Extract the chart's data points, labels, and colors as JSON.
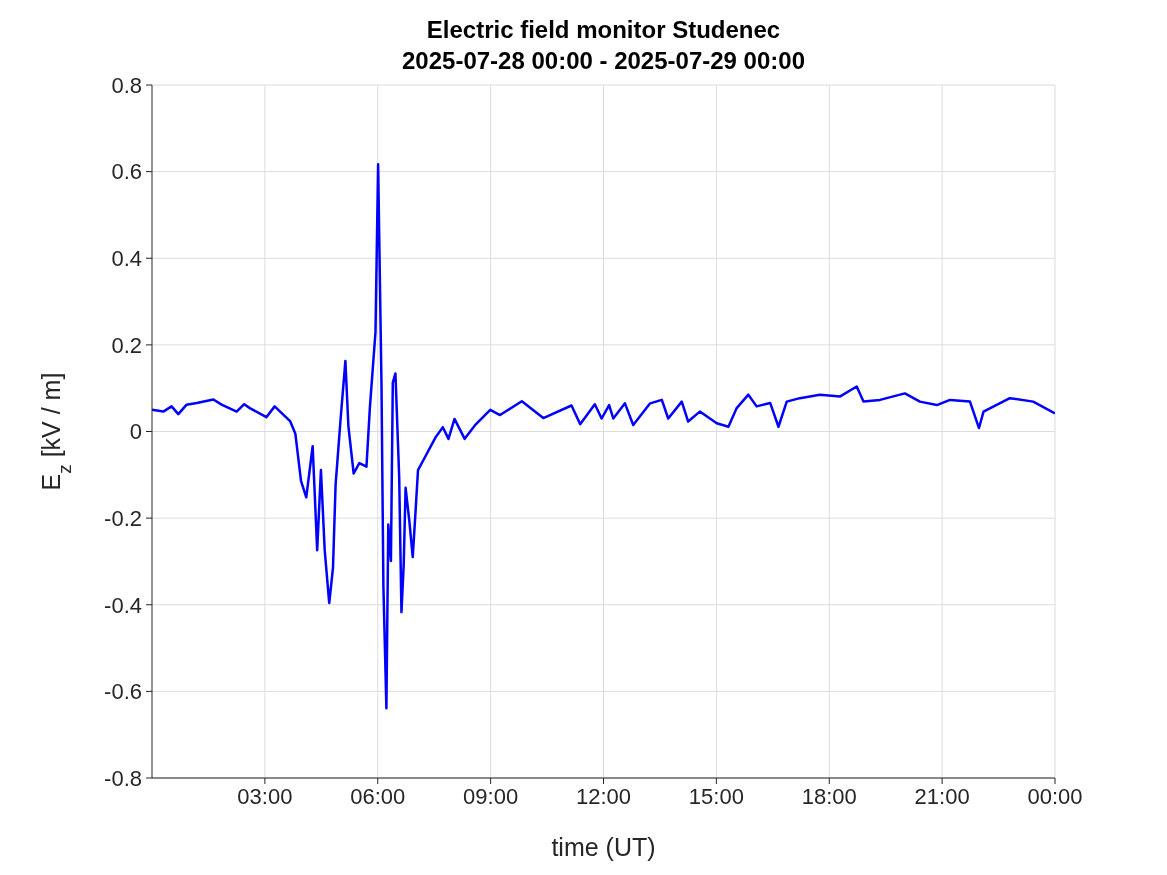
{
  "chart_data": {
    "type": "line",
    "title": "Electric field monitor Studenec",
    "subtitle": "2025-07-28 00:00 - 2025-07-29 00:00",
    "xlabel": "time (UT)",
    "ylabel": "E$_{z}$ [kV / m]",
    "xlim": [
      0,
      24
    ],
    "xticks": [
      {
        "value": 3,
        "label": "03:00"
      },
      {
        "value": 6,
        "label": "06:00"
      },
      {
        "value": 9,
        "label": "09:00"
      },
      {
        "value": 12,
        "label": "12:00"
      },
      {
        "value": 15,
        "label": "15:00"
      },
      {
        "value": 18,
        "label": "18:00"
      },
      {
        "value": 21,
        "label": "21:00"
      },
      {
        "value": 24,
        "label": "00:00"
      }
    ],
    "ylim": [
      -0.8,
      0.8
    ],
    "yticks": [
      -0.8,
      -0.6,
      -0.4,
      -0.2,
      0,
      0.2,
      0.4,
      0.6,
      0.8
    ],
    "grid": true,
    "marker": "none",
    "line_style": "solid",
    "series": [
      {
        "color": "#0000ff",
        "x": [
          0.0,
          0.3,
          0.52,
          0.7,
          0.92,
          1.19,
          1.63,
          1.85,
          2.25,
          2.45,
          2.6,
          3.04,
          3.26,
          3.67,
          3.81,
          3.96,
          4.1,
          4.27,
          4.39,
          4.49,
          4.59,
          4.71,
          4.81,
          4.88,
          5.02,
          5.14,
          5.22,
          5.36,
          5.51,
          5.7,
          5.79,
          5.94,
          6.01,
          6.1,
          6.15,
          6.23,
          6.28,
          6.35,
          6.4,
          6.47,
          6.57,
          6.63,
          6.69,
          6.74,
          6.84,
          6.93,
          7.01,
          7.07,
          7.25,
          7.54,
          7.73,
          7.88,
          8.04,
          8.31,
          8.6,
          8.99,
          9.25,
          9.83,
          10.4,
          11.15,
          11.38,
          11.77,
          11.95,
          12.15,
          12.26,
          12.57,
          12.79,
          13.24,
          13.55,
          13.72,
          14.08,
          14.25,
          14.56,
          15.01,
          15.32,
          15.54,
          15.85,
          16.07,
          16.43,
          16.65,
          16.87,
          17.22,
          17.75,
          18.29,
          18.73,
          18.91,
          19.35,
          20.01,
          20.41,
          20.86,
          21.21,
          21.74,
          21.98,
          22.1,
          22.8,
          23.42,
          24.0
        ],
        "values": [
          0.05,
          0.046,
          0.058,
          0.04,
          0.062,
          0.066,
          0.074,
          0.062,
          0.046,
          0.063,
          0.054,
          0.033,
          0.058,
          0.024,
          -0.005,
          -0.114,
          -0.152,
          -0.034,
          -0.274,
          -0.089,
          -0.274,
          -0.396,
          -0.315,
          -0.122,
          0.037,
          0.163,
          0.012,
          -0.097,
          -0.073,
          -0.081,
          0.054,
          0.23,
          0.617,
          0.104,
          -0.357,
          -0.639,
          -0.215,
          -0.299,
          0.113,
          0.134,
          -0.105,
          -0.417,
          -0.307,
          -0.13,
          -0.207,
          -0.29,
          -0.177,
          -0.089,
          -0.06,
          -0.013,
          0.01,
          -0.017,
          0.029,
          -0.017,
          0.016,
          0.05,
          0.038,
          0.07,
          0.031,
          0.06,
          0.017,
          0.063,
          0.03,
          0.061,
          0.03,
          0.065,
          0.015,
          0.065,
          0.073,
          0.03,
          0.069,
          0.023,
          0.046,
          0.019,
          0.011,
          0.054,
          0.085,
          0.058,
          0.066,
          0.011,
          0.069,
          0.077,
          0.085,
          0.081,
          0.104,
          0.069,
          0.073,
          0.088,
          0.069,
          0.061,
          0.073,
          0.069,
          0.008,
          0.046,
          0.077,
          0.069,
          0.042
        ]
      }
    ]
  }
}
